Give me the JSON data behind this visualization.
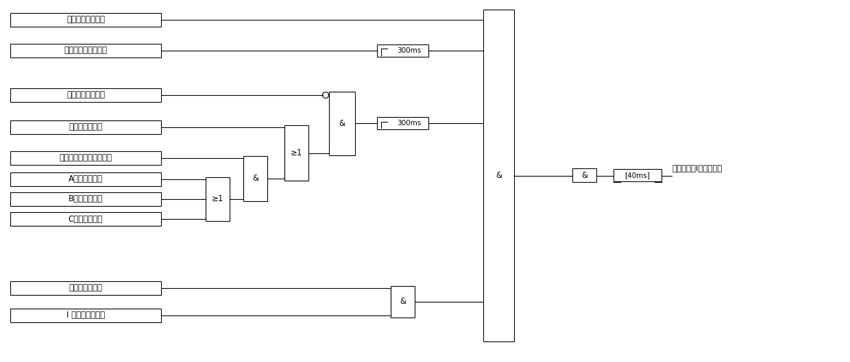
{
  "figsize": [
    12.4,
    5.29
  ],
  "dpi": 100,
  "bg_color": "#ffffff",
  "labels": {
    "box1": "快速解环充电完成",
    "box2": "主变跳母联接点开入",
    "box3": "电流启动条件满足",
    "box4": "零序正方向动作",
    "box5": "零序方向计算条件不满足",
    "box6": "A相正方向动作",
    "box7": "B相正方向动作",
    "box8": "C相正方向动作",
    "box9": "母联断路器无流",
    "box10": "I 母复压条件满足",
    "timer1": "300ms",
    "timer2": "300ms",
    "timer3": "[40ms]",
    "gate_or1": "≥1",
    "gate_and1": "&",
    "gate_or2": "≥1",
    "gate_and2": "&",
    "gate_big": "&",
    "gate_and4": "&",
    "gate_and5": "&",
    "output": "快速解环跳Ⅰ母支路动作"
  },
  "font_size": 8.5,
  "line_color": "#000000"
}
